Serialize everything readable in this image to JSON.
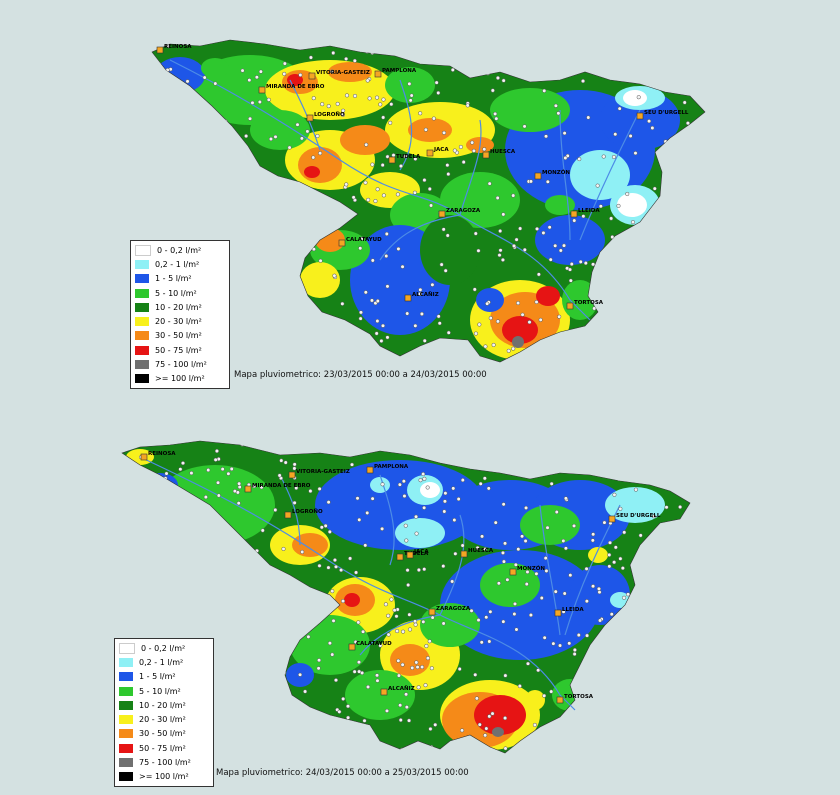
{
  "colors": {
    "c0": "#ffffff",
    "c1": "#8ff0f5",
    "c2": "#1e56e8",
    "c3": "#2ec82e",
    "c4": "#168216",
    "c5": "#f8f01c",
    "c6": "#f58a18",
    "c7": "#e61414",
    "c8": "#707070",
    "c9": "#000000",
    "river": "#4d8ce6",
    "city": "#f5a623"
  },
  "legend": [
    {
      "label": "0 - 0,2 l/m²",
      "color": "#ffffff"
    },
    {
      "label": "0,2 - 1 l/m²",
      "color": "#8ff0f5"
    },
    {
      "label": "1 - 5 l/m²",
      "color": "#1e56e8"
    },
    {
      "label": "5 - 10 l/m²",
      "color": "#2ec82e"
    },
    {
      "label": "10 - 20 l/m²",
      "color": "#168216"
    },
    {
      "label": "20 - 30 l/m²",
      "color": "#f8f01c"
    },
    {
      "label": "30 - 50 l/m²",
      "color": "#f58a18"
    },
    {
      "label": "50 - 75 l/m²",
      "color": "#e61414"
    },
    {
      "label": "75 - 100 l/m²",
      "color": "#707070"
    },
    {
      "label": ">= 100 l/m²",
      "color": "#000000"
    }
  ],
  "maps": [
    {
      "caption": "Mapa pluviometrico: 23/03/2015 00:00 a 24/03/2015 00:00",
      "cities": [
        "REINOSA",
        "VITORIA-GASTEIZ",
        "PAMPLONA",
        "MIRANDA DE EBRO",
        "LOGROÑO",
        "SEU D'URGELL",
        "TUDELA",
        "JACA",
        "HUESCA",
        "MONZÓN",
        "ZARAGOZA",
        "LLEIDA",
        "CALATAYUD",
        "ALCAÑIZ",
        "TORTOSA"
      ]
    },
    {
      "caption": "Mapa pluviometrico: 24/03/2015 00:00 a 25/03/2015 00:00",
      "cities": [
        "REINOSA",
        "VITORIA-GASTEIZ",
        "PAMPLONA",
        "MIRANDA DE EBRO",
        "LOGROÑO",
        "SEU D'URGELL",
        "TUDELA",
        "JACA",
        "HUESCA",
        "MONZÓN",
        "ZARAGOZA",
        "LLEIDA",
        "CALATAYUD",
        "ALCAÑIZ",
        "TORTOSA"
      ]
    }
  ]
}
